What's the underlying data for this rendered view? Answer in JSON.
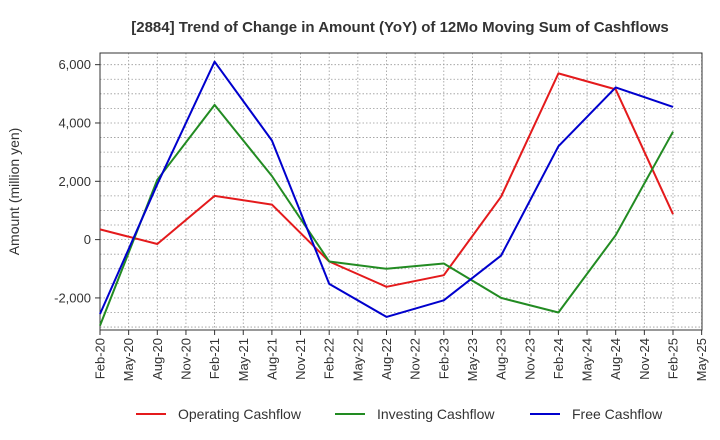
{
  "chart_data": {
    "type": "line",
    "title": "[2884]  Trend of Change in Amount (YoY) of 12Mo Moving Sum of Cashflows",
    "xlabel": "",
    "ylabel": "Amount (million yen)",
    "ylim": [
      -3100,
      6400
    ],
    "yticks": [
      -2000,
      0,
      2000,
      4000,
      6000
    ],
    "ytick_labels": [
      "-2,000",
      "0",
      "2,000",
      "4,000",
      "6,000"
    ],
    "categories": [
      "Feb-20",
      "May-20",
      "Aug-20",
      "Nov-20",
      "Feb-21",
      "May-21",
      "Aug-21",
      "Nov-21",
      "Feb-22",
      "May-22",
      "Aug-22",
      "Nov-22",
      "Feb-23",
      "May-23",
      "Aug-23",
      "Nov-23",
      "Feb-24",
      "May-24",
      "Aug-24",
      "Nov-24",
      "Feb-25",
      "May-25"
    ],
    "grid": true,
    "legend_position": "bottom",
    "series": [
      {
        "name": "Operating Cashflow",
        "color": "#e41a1c",
        "points": [
          {
            "x": "Feb-20",
            "y": 350
          },
          {
            "x": "Aug-20",
            "y": -150
          },
          {
            "x": "Feb-21",
            "y": 1500
          },
          {
            "x": "Aug-21",
            "y": 1200
          },
          {
            "x": "Feb-22",
            "y": -750
          },
          {
            "x": "Aug-22",
            "y": -1620
          },
          {
            "x": "Feb-23",
            "y": -1220
          },
          {
            "x": "Aug-23",
            "y": 1470
          },
          {
            "x": "Feb-24",
            "y": 5700
          },
          {
            "x": "Aug-24",
            "y": 5150
          },
          {
            "x": "Feb-25",
            "y": 870
          }
        ]
      },
      {
        "name": "Investing Cashflow",
        "color": "#228b22",
        "points": [
          {
            "x": "Feb-20",
            "y": -2950
          },
          {
            "x": "Aug-20",
            "y": 2050
          },
          {
            "x": "Feb-21",
            "y": 4620
          },
          {
            "x": "Aug-21",
            "y": 2180
          },
          {
            "x": "Feb-22",
            "y": -750
          },
          {
            "x": "Aug-22",
            "y": -1000
          },
          {
            "x": "Feb-23",
            "y": -820
          },
          {
            "x": "Aug-23",
            "y": -2000
          },
          {
            "x": "Feb-24",
            "y": -2500
          },
          {
            "x": "Aug-24",
            "y": 150
          },
          {
            "x": "Feb-25",
            "y": 3700
          }
        ]
      },
      {
        "name": "Free Cashflow",
        "color": "#0000cd",
        "points": [
          {
            "x": "Feb-20",
            "y": -2550
          },
          {
            "x": "Aug-20",
            "y": 1900
          },
          {
            "x": "Feb-21",
            "y": 6100
          },
          {
            "x": "Aug-21",
            "y": 3400
          },
          {
            "x": "Feb-22",
            "y": -1520
          },
          {
            "x": "Aug-22",
            "y": -2650
          },
          {
            "x": "Feb-23",
            "y": -2080
          },
          {
            "x": "Aug-23",
            "y": -550
          },
          {
            "x": "Feb-24",
            "y": 3200
          },
          {
            "x": "Aug-24",
            "y": 5220
          },
          {
            "x": "Feb-25",
            "y": 4550
          }
        ]
      }
    ]
  }
}
